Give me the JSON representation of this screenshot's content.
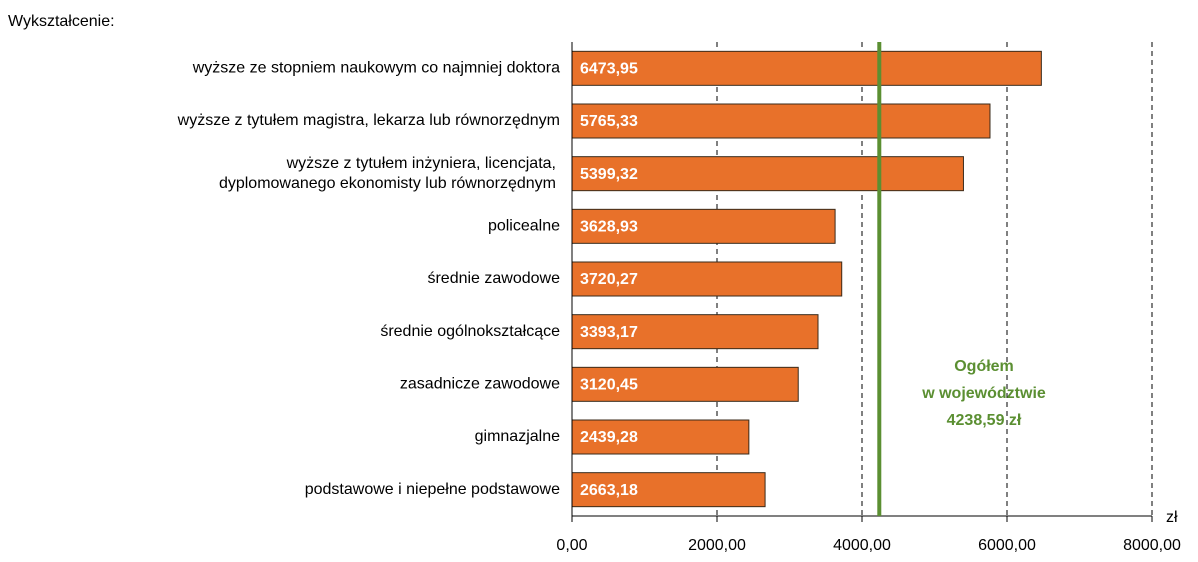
{
  "chart_data": {
    "type": "barh",
    "title": "Wykształcenie:",
    "categories": [
      "wyższe ze stopniem naukowym co najmniej doktora",
      "wyższe z tytułem magistra, lekarza lub równorzędnym",
      [
        "wyższe z tytułem inżyniera, licencjata,",
        "dyplomowanego ekonomisty lub równorzędnym"
      ],
      "policealne",
      "średnie zawodowe",
      "średnie ogólnokształcące",
      "zasadnicze zawodowe",
      "gimnazjalne",
      "podstawowe i niepełne podstawowe"
    ],
    "values": [
      6473.95,
      5765.33,
      5399.32,
      3628.93,
      3720.27,
      3393.17,
      3120.45,
      2439.28,
      2663.18
    ],
    "value_labels": [
      "6473,95",
      "5765,33",
      "5399,32",
      "3628,93",
      "3720,27",
      "3393,17",
      "3120,45",
      "2439,28",
      "2663,18"
    ],
    "color": "#e8712a",
    "xlim": [
      0,
      8000
    ],
    "xticks": [
      {
        "value": 0,
        "label": "0,00"
      },
      {
        "value": 2000,
        "label": "2000,00"
      },
      {
        "value": 4000,
        "label": "4000,00"
      },
      {
        "value": 6000,
        "label": "6000,00"
      },
      {
        "value": 8000,
        "label": "8000,00"
      }
    ],
    "x_unit": "zł",
    "grid": true,
    "reference": {
      "value": 4238.59,
      "color": "#5b8f32",
      "label": [
        "Ogółem",
        "w województwie",
        "4238,59 zł"
      ]
    }
  }
}
